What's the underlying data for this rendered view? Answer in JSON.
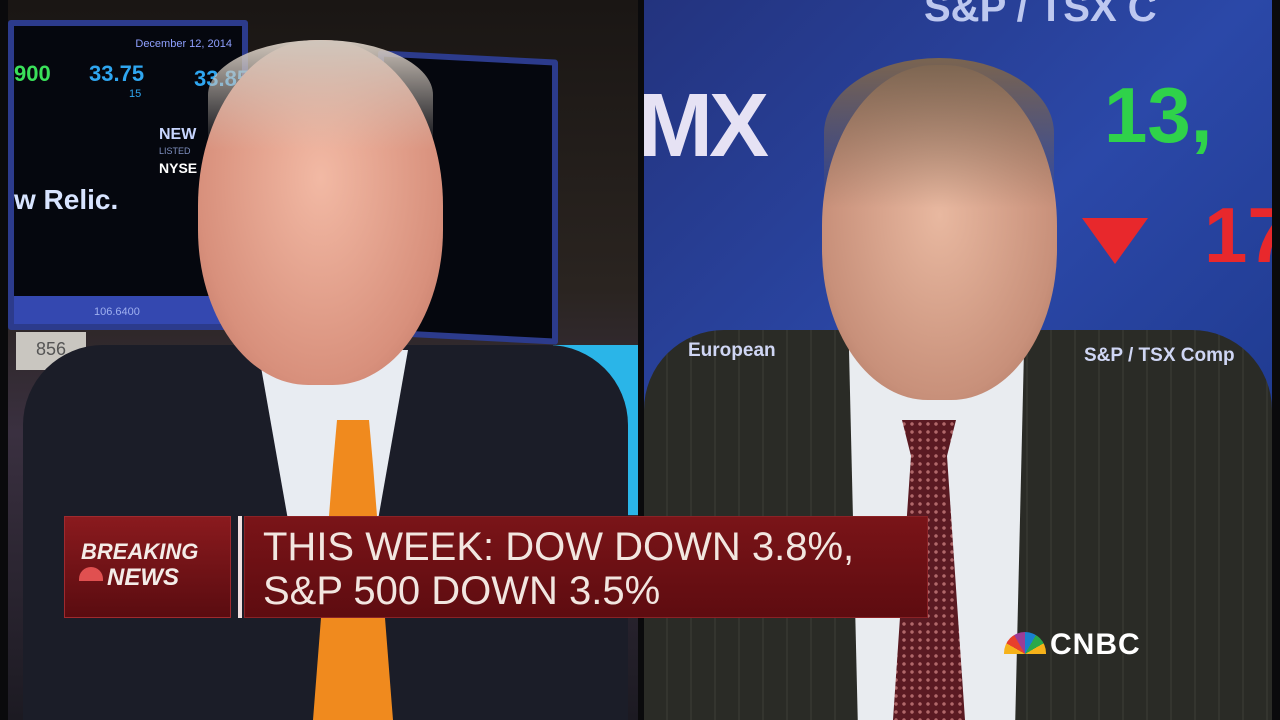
{
  "left_panel": {
    "monitor": {
      "date": "December 12, 2014",
      "volume": "900",
      "price_1": "33.75",
      "price_2": "33.85",
      "sub_value": "15",
      "new_label": "NEW",
      "listed_label": "LISTED",
      "exchange": "NYSE",
      "company": "w Relic.",
      "ticker_value": "106.6400"
    },
    "post_number": "856"
  },
  "right_panel": {
    "backdrop_top": "S&P / TSX C",
    "logo_letters": "MX",
    "index_value": "13,",
    "change_value": "17",
    "change_direction": "down",
    "label_left": "European",
    "label_right": "S&P / TSX Comp",
    "colors": {
      "up": "#2fd24a",
      "down": "#e8282c"
    }
  },
  "lower_third": {
    "badge_line1": "BREAKING",
    "badge_line2": "NEWS",
    "headline_line1": "THIS WEEK: DOW DOWN 3.8%,",
    "headline_line2": "S&P 500 DOWN 3.5%",
    "colors": {
      "bar": "#6e0f14",
      "text": "#f2e6e0"
    }
  },
  "network_logo": "CNBC"
}
